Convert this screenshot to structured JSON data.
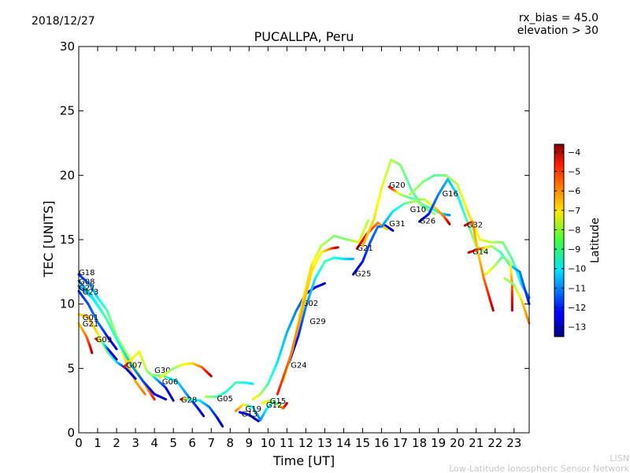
{
  "header": {
    "date": "2018/12/27",
    "rx_bias": "rx_bias = 45.0",
    "elevation": "elevation > 30"
  },
  "watermark": {
    "line1": "LISN",
    "line2": "Low-Latitude Ionospheric Sensor Network"
  },
  "chart_data": {
    "type": "scatter",
    "title": "PUCALLPA, Peru",
    "xlabel": "Time [UT]",
    "ylabel": "TEC [UNITS]",
    "xlim": [
      0,
      23.8
    ],
    "ylim": [
      0,
      30
    ],
    "xticks": [
      0,
      1,
      2,
      3,
      4,
      5,
      6,
      7,
      8,
      9,
      10,
      11,
      12,
      13,
      14,
      15,
      16,
      17,
      18,
      19,
      20,
      21,
      22,
      23
    ],
    "yticks": [
      0,
      5,
      10,
      15,
      20,
      25,
      30
    ],
    "grid": false,
    "colorbar": {
      "label": "Latitude",
      "range": [
        -13.5,
        -3.6
      ],
      "ticks": [
        -13,
        -12,
        -11,
        -10,
        -9,
        -8,
        -7,
        -6,
        -5,
        -4
      ],
      "colormap": "jet"
    },
    "series": [
      {
        "name": "G18",
        "label_at": [
          0.0,
          12.5
        ],
        "points": [
          [
            0.0,
            12.3,
            -12
          ],
          [
            0.6,
            11.5,
            -11
          ],
          [
            1.0,
            10.5,
            -10
          ],
          [
            1.5,
            9.5,
            -9
          ],
          [
            2.0,
            7.5,
            -8
          ],
          [
            2.5,
            5.5,
            -7
          ],
          [
            3.0,
            4.0,
            -6.5
          ],
          [
            3.5,
            3.0,
            -6
          ]
        ]
      },
      {
        "name": "G08",
        "label_at": [
          0.0,
          11.8
        ],
        "points": [
          [
            0.0,
            11.8,
            -11
          ],
          [
            0.6,
            10.8,
            -10
          ],
          [
            1.2,
            9.5,
            -9
          ],
          [
            1.8,
            8.0,
            -8.5
          ],
          [
            2.4,
            6.5,
            -8
          ],
          [
            3.0,
            5.0,
            -7.5
          ],
          [
            3.6,
            3.5,
            -6.5
          ],
          [
            4.0,
            2.6,
            -5
          ]
        ]
      },
      {
        "name": "G27",
        "label_at": [
          0.0,
          11.3
        ],
        "points": [
          [
            0.0,
            11.4,
            -11
          ],
          [
            0.7,
            10.5,
            -10
          ],
          [
            1.4,
            9.0,
            -9
          ],
          [
            2.1,
            7.0,
            -9.5
          ],
          [
            2.8,
            5.2,
            -10.5
          ],
          [
            3.4,
            4.0,
            -11.5
          ],
          [
            4.0,
            3.0,
            -12.5
          ],
          [
            4.6,
            2.6,
            -13
          ]
        ]
      },
      {
        "name": "G23",
        "label_at": [
          0.2,
          11.0
        ],
        "points": [
          [
            0.0,
            11.0,
            -12
          ],
          [
            0.5,
            10.0,
            -11.5
          ],
          [
            1.0,
            8.6,
            -11
          ],
          [
            1.5,
            7.5,
            -12
          ],
          [
            2.0,
            6.5,
            -13
          ]
        ]
      },
      {
        "name": "G01",
        "label_at": [
          0.2,
          9.0
        ],
        "points": [
          [
            0.0,
            9.2,
            -7
          ],
          [
            0.5,
            9.0,
            -6.5
          ],
          [
            1.0,
            7.7,
            -7
          ],
          [
            1.5,
            6.3,
            -8.5
          ],
          [
            2.0,
            5.5,
            -10
          ],
          [
            2.5,
            5.0,
            -12
          ],
          [
            3.0,
            4.2,
            -13
          ]
        ]
      },
      {
        "name": "G21",
        "label_at": [
          0.2,
          8.5
        ],
        "points": [
          [
            0.0,
            8.5,
            -7
          ],
          [
            0.4,
            7.5,
            -6
          ],
          [
            0.6,
            6.7,
            -5
          ],
          [
            0.7,
            6.2,
            -4
          ]
        ]
      },
      {
        "name": "G09",
        "label_at": [
          0.9,
          7.3
        ],
        "points": [
          [
            0.9,
            7.3,
            -4
          ],
          [
            1.2,
            7.1,
            -8
          ],
          [
            1.6,
            6.4,
            -12
          ],
          [
            2.0,
            5.7,
            -13
          ]
        ]
      },
      {
        "name": "G07",
        "label_at": [
          2.5,
          5.3
        ],
        "points": [
          [
            2.4,
            5.1,
            -4
          ],
          [
            2.7,
            5.6,
            -7
          ],
          [
            3.2,
            6.3,
            -7.5
          ],
          [
            3.6,
            4.8,
            -8
          ],
          [
            4.0,
            4.3,
            -10
          ],
          [
            4.6,
            3.5,
            -12
          ],
          [
            5.0,
            2.5,
            -13
          ]
        ]
      },
      {
        "name": "G30",
        "label_at": [
          4.0,
          4.9
        ],
        "points": [
          [
            3.8,
            4.5,
            -8
          ],
          [
            4.5,
            4.4,
            -9
          ],
          [
            5.2,
            4.0,
            -10
          ],
          [
            5.8,
            2.8,
            -11
          ],
          [
            6.3,
            1.9,
            -12
          ],
          [
            6.6,
            1.3,
            -13
          ]
        ]
      },
      {
        "name": "G06",
        "label_at": [
          4.4,
          4.0
        ],
        "points": [
          [
            4.3,
            4.3,
            -7
          ],
          [
            5.0,
            5.0,
            -8.5
          ],
          [
            5.5,
            5.3,
            -7.5
          ],
          [
            6.0,
            5.4,
            -7
          ],
          [
            6.5,
            5.1,
            -6
          ],
          [
            7.0,
            4.4,
            -4
          ]
        ]
      },
      {
        "name": "G28",
        "label_at": [
          5.4,
          2.6
        ],
        "points": [
          [
            5.4,
            2.6,
            -4
          ],
          [
            5.8,
            2.6,
            -9
          ],
          [
            6.4,
            2.5,
            -10
          ],
          [
            6.9,
            2.0,
            -11
          ],
          [
            7.3,
            1.2,
            -12
          ],
          [
            7.6,
            0.5,
            -13
          ]
        ]
      },
      {
        "name": "G05",
        "label_at": [
          7.3,
          2.7
        ],
        "points": [
          [
            6.7,
            2.8,
            -8
          ],
          [
            7.3,
            2.8,
            -9
          ],
          [
            7.8,
            3.2,
            -9.5
          ],
          [
            8.3,
            3.9,
            -9
          ],
          [
            8.8,
            3.9,
            -9.5
          ],
          [
            9.2,
            3.8,
            -10
          ]
        ]
      },
      {
        "name": "G19",
        "label_at": [
          8.8,
          1.9
        ],
        "points": [
          [
            8.3,
            1.7,
            -6
          ],
          [
            8.7,
            2.2,
            -7
          ],
          [
            9.2,
            2.0,
            -10
          ],
          [
            9.6,
            1.0,
            -11
          ],
          [
            9.9,
            1.8,
            -10
          ],
          [
            10.3,
            2.5,
            -9
          ]
        ]
      },
      {
        "name": "G12",
        "label_at": [
          9.9,
          2.2
        ],
        "points": [
          [
            9.7,
            2.3,
            -7
          ],
          [
            10.1,
            2.5,
            -8
          ],
          [
            10.5,
            2.2,
            -9
          ],
          [
            10.8,
            1.9,
            -6
          ],
          [
            11.0,
            2.3,
            -4
          ]
        ]
      },
      {
        "name": "G15",
        "label_at": [
          10.1,
          2.5
        ],
        "points": [
          [
            9.2,
            2.6,
            -7
          ],
          [
            9.6,
            3.0,
            -8
          ],
          [
            10.0,
            3.8,
            -9
          ],
          [
            10.5,
            5.5,
            -10
          ],
          [
            11.0,
            7.8,
            -10.5
          ],
          [
            11.5,
            9.5,
            -11
          ],
          [
            12.0,
            10.8,
            -12
          ],
          [
            12.5,
            11.3,
            -12.5
          ],
          [
            13.0,
            11.6,
            -13
          ]
        ]
      },
      {
        "name": "G13",
        "label_at": [
          8.6,
          1.5
        ],
        "points": [
          [
            8.5,
            1.6,
            -12
          ],
          [
            9.0,
            1.4,
            -12.5
          ],
          [
            9.5,
            0.9,
            -13
          ]
        ]
      },
      {
        "name": "G24",
        "label_at": [
          11.2,
          5.3
        ],
        "points": [
          [
            11.1,
            5.4,
            -13
          ],
          [
            11.6,
            7.5,
            -12
          ],
          [
            12.0,
            9.8,
            -11
          ],
          [
            12.5,
            12.0,
            -10
          ],
          [
            13.0,
            13.3,
            -9
          ],
          [
            13.5,
            13.6,
            -9.5
          ],
          [
            14.0,
            13.5,
            -10
          ],
          [
            14.5,
            13.5,
            -10.5
          ]
        ]
      },
      {
        "name": "G02",
        "label_at": [
          11.8,
          10.1
        ],
        "points": [
          [
            10.8,
            4.0,
            -8
          ],
          [
            11.3,
            6.5,
            -7.5
          ],
          [
            11.8,
            10.0,
            -7
          ],
          [
            12.3,
            13.0,
            -7
          ],
          [
            12.8,
            14.5,
            -8
          ],
          [
            13.5,
            15.3,
            -8.5
          ],
          [
            14.2,
            15.0,
            -8.5
          ],
          [
            14.8,
            14.8,
            -7.5
          ],
          [
            15.3,
            16.5,
            -8
          ]
        ]
      },
      {
        "name": "G29",
        "label_at": [
          12.2,
          8.7
        ],
        "points": [
          [
            10.5,
            3.0,
            -5
          ],
          [
            11.2,
            6.0,
            -6
          ],
          [
            11.8,
            9.5,
            -6.5
          ],
          [
            12.3,
            12.5,
            -7
          ],
          [
            12.8,
            14.0,
            -7.5
          ],
          [
            13.3,
            14.3,
            -6
          ],
          [
            13.7,
            14.4,
            -4
          ]
        ]
      },
      {
        "name": "G25",
        "label_at": [
          14.6,
          12.4
        ],
        "points": [
          [
            14.5,
            12.3,
            -13
          ],
          [
            15.0,
            13.3,
            -12
          ],
          [
            15.4,
            14.8,
            -11.5
          ],
          [
            15.8,
            16.0,
            -11
          ],
          [
            16.2,
            16.1,
            -12
          ],
          [
            16.6,
            15.7,
            -13
          ]
        ]
      },
      {
        "name": "G21",
        "label_at": [
          14.7,
          14.4
        ],
        "points": [
          [
            14.7,
            14.3,
            -4
          ],
          [
            15.2,
            15.4,
            -5
          ],
          [
            15.8,
            16.3,
            -6
          ],
          [
            16.3,
            15.8,
            -7
          ]
        ]
      },
      {
        "name": "G20",
        "label_at": [
          16.4,
          19.3
        ],
        "points": [
          [
            15.0,
            14.5,
            -6.5
          ],
          [
            15.6,
            16.6,
            -7
          ],
          [
            16.0,
            19.0,
            -7.5
          ],
          [
            16.5,
            21.2,
            -8
          ],
          [
            17.0,
            20.8,
            -8.5
          ],
          [
            17.6,
            18.8,
            -9
          ],
          [
            18.2,
            17.5,
            -9
          ],
          [
            18.8,
            17.0,
            -8
          ]
        ]
      },
      {
        "name": "G31",
        "label_at": [
          16.4,
          16.3
        ],
        "points": [
          [
            16.0,
            16.0,
            -11
          ],
          [
            16.6,
            17.2,
            -10
          ],
          [
            17.2,
            17.8,
            -9
          ],
          [
            17.8,
            18.0,
            -8
          ],
          [
            18.5,
            17.5,
            -9
          ],
          [
            19.2,
            17.0,
            -10
          ],
          [
            19.6,
            16.9,
            -11
          ]
        ]
      },
      {
        "name": "G10",
        "label_at": [
          17.5,
          17.4
        ],
        "points": [
          [
            16.4,
            19.1,
            -4
          ],
          [
            17.0,
            18.5,
            -8
          ],
          [
            17.6,
            18.2,
            -9
          ],
          [
            18.3,
            18.1,
            -8
          ],
          [
            18.8,
            17.5,
            -7
          ],
          [
            19.3,
            16.8,
            -6
          ],
          [
            19.6,
            16.2,
            -4
          ]
        ]
      },
      {
        "name": "G26",
        "label_at": [
          18.0,
          16.5
        ],
        "points": [
          [
            18.0,
            16.4,
            -13
          ],
          [
            18.5,
            17.0,
            -12
          ],
          [
            19.0,
            18.5,
            -11
          ],
          [
            19.5,
            19.7,
            -10.5
          ],
          [
            20.0,
            18.5,
            -10
          ],
          [
            20.5,
            16.5,
            -9
          ],
          [
            21.0,
            14.5,
            -8
          ],
          [
            21.5,
            14.0,
            -8.5
          ]
        ]
      },
      {
        "name": "G16",
        "label_at": [
          19.2,
          18.6
        ],
        "points": [
          [
            17.5,
            18.5,
            -8
          ],
          [
            18.2,
            19.5,
            -8.5
          ],
          [
            18.8,
            20.0,
            -9
          ],
          [
            19.4,
            20.0,
            -8.5
          ],
          [
            20.0,
            19.3,
            -8
          ],
          [
            20.6,
            17.0,
            -7
          ],
          [
            21.2,
            15.0,
            -7.5
          ],
          [
            21.8,
            14.8,
            -8
          ],
          [
            22.4,
            14.8,
            -8.5
          ],
          [
            22.9,
            13.5,
            -9
          ],
          [
            23.4,
            11.5,
            -10
          ],
          [
            23.8,
            10.5,
            -11
          ]
        ]
      },
      {
        "name": "G32",
        "label_at": [
          20.5,
          16.2
        ],
        "points": [
          [
            20.4,
            16.1,
            -4
          ],
          [
            20.8,
            16.4,
            -6
          ],
          [
            21.1,
            14.0,
            -7
          ],
          [
            21.4,
            12.0,
            -6
          ],
          [
            21.7,
            10.5,
            -5
          ],
          [
            21.9,
            9.5,
            -4
          ]
        ]
      },
      {
        "name": "G14",
        "label_at": [
          20.8,
          14.1
        ],
        "points": [
          [
            20.6,
            14.0,
            -4
          ],
          [
            21.2,
            14.3,
            -6
          ],
          [
            21.8,
            14.5,
            -8
          ],
          [
            22.3,
            14.0,
            -9
          ],
          [
            22.8,
            13.0,
            -10
          ],
          [
            23.3,
            12.5,
            -11
          ],
          [
            23.8,
            10.0,
            -12
          ]
        ]
      },
      {
        "name": "",
        "label_at": null,
        "points": [
          [
            21.5,
            12.3,
            -7
          ],
          [
            22.0,
            13.0,
            -8
          ],
          [
            22.4,
            13.7,
            -9
          ],
          [
            22.8,
            13.2,
            -8
          ],
          [
            22.9,
            11.5,
            -6
          ],
          [
            22.9,
            9.5,
            -4
          ]
        ]
      },
      {
        "name": "",
        "label_at": null,
        "points": [
          [
            22.5,
            12.0,
            -8
          ],
          [
            23.0,
            11.5,
            -8.5
          ],
          [
            23.4,
            10.3,
            -7
          ],
          [
            23.8,
            8.5,
            -6
          ]
        ]
      }
    ]
  }
}
